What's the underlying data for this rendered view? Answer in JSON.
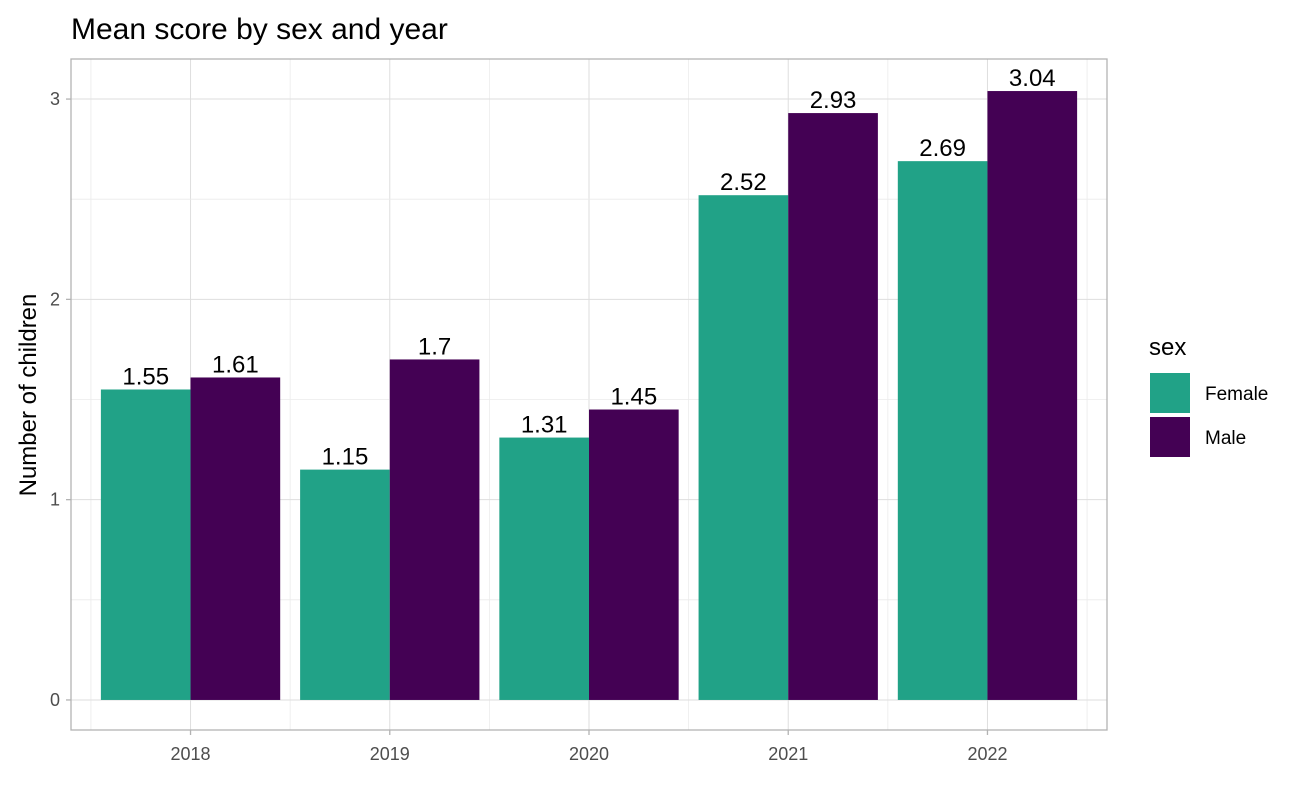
{
  "chart_data": {
    "type": "bar",
    "title": "Mean score by sex and year",
    "xlabel": "",
    "ylabel": "Number of children",
    "categories": [
      "2018",
      "2019",
      "2020",
      "2021",
      "2022"
    ],
    "series": [
      {
        "name": "Female",
        "color": "#21a287",
        "values": [
          1.55,
          1.15,
          1.31,
          2.52,
          2.69
        ],
        "labels": [
          "1.55",
          "1.15",
          "1.31",
          "2.52",
          "2.69"
        ]
      },
      {
        "name": "Male",
        "color": "#440154",
        "values": [
          1.61,
          1.7,
          1.45,
          2.93,
          3.04
        ],
        "labels": [
          "1.61",
          "1.7",
          "1.45",
          "2.93",
          "3.04"
        ]
      }
    ],
    "yticks": [
      "0",
      "1",
      "2",
      "3"
    ],
    "ylim": [
      -0.15,
      3.2
    ],
    "grid": true,
    "legend": {
      "title": "sex",
      "position": "right"
    }
  }
}
